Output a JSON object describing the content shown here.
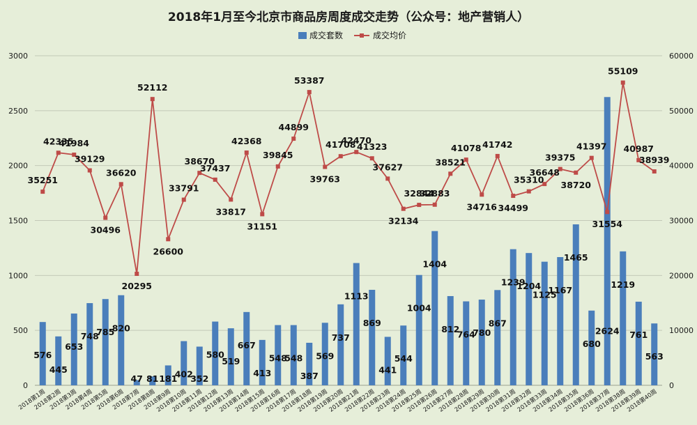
{
  "chart_data": {
    "type": "bar",
    "title": "2018年1月至今北京市商品房周度成交走势（公众号：地产营销人）",
    "legend_placement": "top",
    "grid": true,
    "categories": [
      "2018第1周",
      "2018第2周",
      "2018第3周",
      "2018第4周",
      "2018第5周",
      "2018第6周",
      "2018第7周",
      "2018第8周",
      "2018第9周",
      "2018第10周",
      "2018第11周",
      "2018第12周",
      "2018第13周",
      "2018第14周",
      "2018第15周",
      "2018第16周",
      "2018第17周",
      "2018第18周",
      "2018第19周",
      "2018第20周",
      "2018第21周",
      "2018第22周",
      "2018第23周",
      "2018第24周",
      "2018第25周",
      "2018第26周",
      "2018第27周",
      "2018第28周",
      "2018第29周",
      "2018第30周",
      "2018第31周",
      "2018第32周",
      "2018第33周",
      "2018第34周",
      "2018第35周",
      "2018第36周",
      "2018第37周",
      "2018第38周",
      "2018第39周",
      "2018第40周"
    ],
    "ylim_left": [
      0,
      3000
    ],
    "ylim_right": [
      0,
      60000
    ],
    "left_ticks": [
      "0",
      "500",
      "1000",
      "1500",
      "2000",
      "2500",
      "3000"
    ],
    "right_ticks": [
      "0",
      "10000",
      "20000",
      "30000",
      "40000",
      "50000",
      "60000"
    ],
    "series": [
      {
        "name": "成交套数",
        "type": "bar",
        "axis": "left",
        "color": "#4a7ebb",
        "values": [
          576,
          445,
          653,
          748,
          785,
          820,
          47,
          81,
          181,
          402,
          352,
          580,
          519,
          667,
          413,
          548,
          548,
          387,
          569,
          737,
          1113,
          869,
          441,
          544,
          1004,
          1404,
          812,
          764,
          780,
          867,
          1239,
          1204,
          1125,
          1167,
          1465,
          680,
          2624,
          1219,
          761,
          563
        ]
      },
      {
        "name": "成交均价",
        "type": "line",
        "axis": "right",
        "color": "#be4b48",
        "values": [
          35251,
          42335,
          41984,
          39129,
          30496,
          36620,
          20295,
          52112,
          26600,
          33791,
          38670,
          37437,
          33817,
          42368,
          31151,
          39845,
          44899,
          53387,
          39763,
          41708,
          42470,
          41323,
          37627,
          32134,
          32844,
          32883,
          38521,
          41078,
          34716,
          41742,
          34499,
          35310,
          36648,
          39375,
          38720,
          41397,
          31554,
          55109,
          40987,
          38939
        ]
      }
    ]
  }
}
